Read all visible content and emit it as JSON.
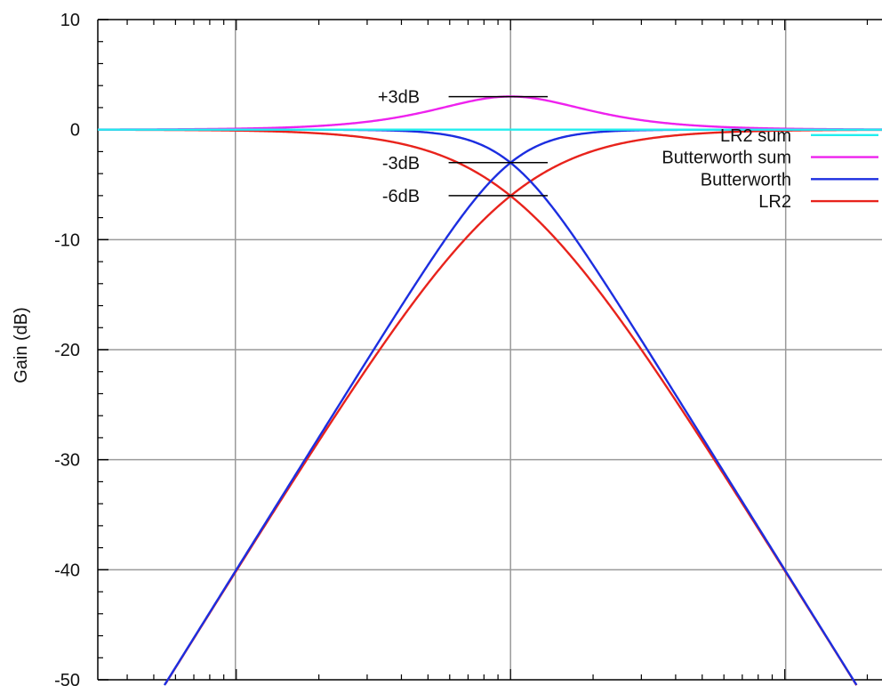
{
  "chart_data": {
    "type": "line",
    "ylabel": "Gain (dB)",
    "xscale": "log",
    "x_range_octaves": [
      -5,
      4.5
    ],
    "ylim": [
      -50,
      10
    ],
    "yticks": [
      10,
      0,
      -10,
      -20,
      -30,
      -40,
      -50
    ],
    "ytick_labels": [
      "10",
      "0",
      "-10",
      "-20",
      "-30",
      "-40",
      "-50"
    ],
    "grid": true,
    "legend_placement": "right",
    "series": [
      {
        "name": "LR2",
        "color": "#e8231c",
        "filter": "lr2"
      },
      {
        "name": "Butterworth",
        "color": "#1c2ee0",
        "filter": "butterworth"
      },
      {
        "name": "Butterworth sum",
        "color": "#ee22ee",
        "filter": "butterworth_sum"
      },
      {
        "name": "LR2 sum",
        "color": "#22eeee",
        "filter": "lr2_sum"
      }
    ],
    "annotations": [
      {
        "text": "+3dB",
        "y": 3
      },
      {
        "text": "-3dB",
        "y": -3
      },
      {
        "text": "-6dB",
        "y": -6
      }
    ]
  }
}
